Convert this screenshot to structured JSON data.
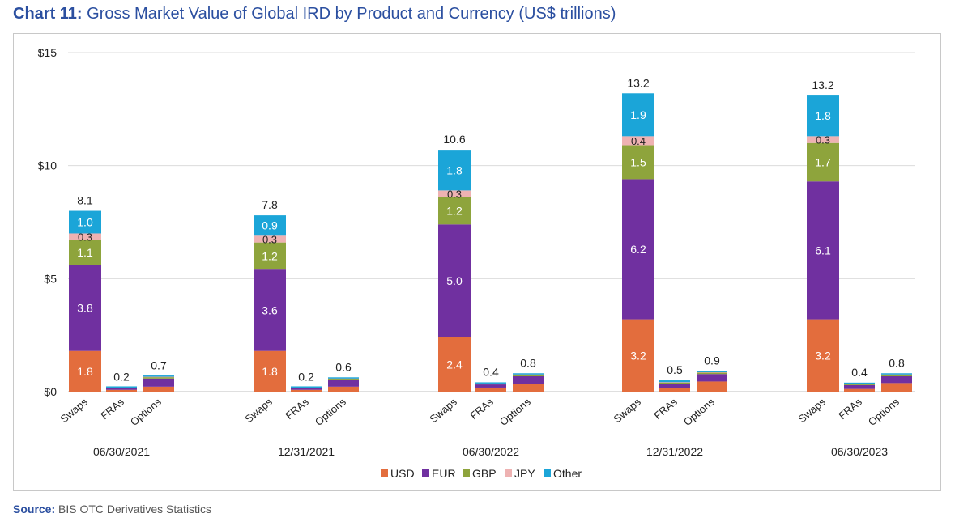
{
  "title": {
    "lead": "Chart 11:",
    "text": "Gross Market Value of Global IRD by Product and Currency (US$ trillions)"
  },
  "source": {
    "lead": "Source:",
    "text": "BIS OTC Derivatives Statistics"
  },
  "chart_data": {
    "type": "bar",
    "stacked": true,
    "title": "Gross Market Value of Global IRD by Product and Currency (US$ trillions)",
    "ylim": [
      0,
      15
    ],
    "yticks": [
      {
        "value": 0,
        "label": "$0"
      },
      {
        "value": 5,
        "label": "$5"
      },
      {
        "value": 10,
        "label": "$10"
      },
      {
        "value": 15,
        "label": "$15"
      }
    ],
    "grid": true,
    "legend_position": "bottom",
    "colors": {
      "USD": "#e36d3d",
      "EUR": "#7030a0",
      "GBP": "#8ea43c",
      "JPY": "#eeb2b2",
      "Other": "#1ba5d8"
    },
    "text_color": "#222222",
    "series_names": [
      "USD",
      "EUR",
      "GBP",
      "JPY",
      "Other"
    ],
    "groups": [
      {
        "date": "06/30/2021",
        "bars": [
          {
            "product": "Swaps",
            "total": "8.1",
            "segments": [
              {
                "series": "USD",
                "value": 1.8,
                "label": "1.8"
              },
              {
                "series": "EUR",
                "value": 3.8,
                "label": "3.8"
              },
              {
                "series": "GBP",
                "value": 1.1,
                "label": "1.1"
              },
              {
                "series": "JPY",
                "value": 0.3,
                "label": "0.3"
              },
              {
                "series": "Other",
                "value": 1.0,
                "label": "1.0"
              }
            ]
          },
          {
            "product": "FRAs",
            "total": "0.2",
            "segments": [
              {
                "series": "USD",
                "value": 0.08
              },
              {
                "series": "EUR",
                "value": 0.07
              },
              {
                "series": "GBP",
                "value": 0.02
              },
              {
                "series": "JPY",
                "value": 0.01
              },
              {
                "series": "Other",
                "value": 0.02
              }
            ]
          },
          {
            "product": "Options",
            "total": "0.7",
            "segments": [
              {
                "series": "USD",
                "value": 0.22
              },
              {
                "series": "EUR",
                "value": 0.36
              },
              {
                "series": "GBP",
                "value": 0.06
              },
              {
                "series": "JPY",
                "value": 0.02
              },
              {
                "series": "Other",
                "value": 0.04
              }
            ]
          }
        ]
      },
      {
        "date": "12/31/2021",
        "bars": [
          {
            "product": "Swaps",
            "total": "7.8",
            "segments": [
              {
                "series": "USD",
                "value": 1.8,
                "label": "1.8"
              },
              {
                "series": "EUR",
                "value": 3.6,
                "label": "3.6"
              },
              {
                "series": "GBP",
                "value": 1.2,
                "label": "1.2"
              },
              {
                "series": "JPY",
                "value": 0.3,
                "label": "0.3"
              },
              {
                "series": "Other",
                "value": 0.9,
                "label": "0.9"
              }
            ]
          },
          {
            "product": "FRAs",
            "total": "0.2",
            "segments": [
              {
                "series": "USD",
                "value": 0.08
              },
              {
                "series": "EUR",
                "value": 0.07
              },
              {
                "series": "GBP",
                "value": 0.02
              },
              {
                "series": "JPY",
                "value": 0.01
              },
              {
                "series": "Other",
                "value": 0.02
              }
            ]
          },
          {
            "product": "Options",
            "total": "0.6",
            "segments": [
              {
                "series": "USD",
                "value": 0.22
              },
              {
                "series": "EUR",
                "value": 0.3
              },
              {
                "series": "GBP",
                "value": 0.05
              },
              {
                "series": "JPY",
                "value": 0.01
              },
              {
                "series": "Other",
                "value": 0.04
              }
            ]
          }
        ]
      },
      {
        "date": "06/30/2022",
        "bars": [
          {
            "product": "Swaps",
            "total": "10.6",
            "segments": [
              {
                "series": "USD",
                "value": 2.4,
                "label": "2.4"
              },
              {
                "series": "EUR",
                "value": 5.0,
                "label": "5.0"
              },
              {
                "series": "GBP",
                "value": 1.2,
                "label": "1.2"
              },
              {
                "series": "JPY",
                "value": 0.3,
                "label": "0.3"
              },
              {
                "series": "Other",
                "value": 1.8,
                "label": "1.8"
              }
            ]
          },
          {
            "product": "FRAs",
            "total": "0.4",
            "segments": [
              {
                "series": "USD",
                "value": 0.18
              },
              {
                "series": "EUR",
                "value": 0.14
              },
              {
                "series": "GBP",
                "value": 0.03
              },
              {
                "series": "JPY",
                "value": 0.01
              },
              {
                "series": "Other",
                "value": 0.05
              }
            ]
          },
          {
            "product": "Options",
            "total": "0.8",
            "segments": [
              {
                "series": "USD",
                "value": 0.35
              },
              {
                "series": "EUR",
                "value": 0.33
              },
              {
                "series": "GBP",
                "value": 0.06
              },
              {
                "series": "JPY",
                "value": 0.02
              },
              {
                "series": "Other",
                "value": 0.05
              }
            ]
          }
        ]
      },
      {
        "date": "12/31/2022",
        "bars": [
          {
            "product": "Swaps",
            "total": "13.2",
            "segments": [
              {
                "series": "USD",
                "value": 3.2,
                "label": "3.2"
              },
              {
                "series": "EUR",
                "value": 6.2,
                "label": "6.2"
              },
              {
                "series": "GBP",
                "value": 1.5,
                "label": "1.5"
              },
              {
                "series": "JPY",
                "value": 0.4,
                "label": "0.4"
              },
              {
                "series": "Other",
                "value": 1.9,
                "label": "1.9"
              }
            ]
          },
          {
            "product": "FRAs",
            "total": "0.5",
            "segments": [
              {
                "series": "USD",
                "value": 0.15
              },
              {
                "series": "EUR",
                "value": 0.2
              },
              {
                "series": "GBP",
                "value": 0.05
              },
              {
                "series": "JPY",
                "value": 0.02
              },
              {
                "series": "Other",
                "value": 0.08
              }
            ]
          },
          {
            "product": "Options",
            "total": "0.9",
            "segments": [
              {
                "series": "USD",
                "value": 0.45
              },
              {
                "series": "EUR",
                "value": 0.33
              },
              {
                "series": "GBP",
                "value": 0.06
              },
              {
                "series": "JPY",
                "value": 0.02
              },
              {
                "series": "Other",
                "value": 0.05
              }
            ]
          }
        ]
      },
      {
        "date": "06/30/2023",
        "bars": [
          {
            "product": "Swaps",
            "total": "13.2",
            "segments": [
              {
                "series": "USD",
                "value": 3.2,
                "label": "3.2"
              },
              {
                "series": "EUR",
                "value": 6.1,
                "label": "6.1"
              },
              {
                "series": "GBP",
                "value": 1.7,
                "label": "1.7"
              },
              {
                "series": "JPY",
                "value": 0.3,
                "label": "0.3"
              },
              {
                "series": "Other",
                "value": 1.8,
                "label": "1.8"
              }
            ]
          },
          {
            "product": "FRAs",
            "total": "0.4",
            "segments": [
              {
                "series": "USD",
                "value": 0.12
              },
              {
                "series": "EUR",
                "value": 0.17
              },
              {
                "series": "GBP",
                "value": 0.04
              },
              {
                "series": "JPY",
                "value": 0.01
              },
              {
                "series": "Other",
                "value": 0.06
              }
            ]
          },
          {
            "product": "Options",
            "total": "0.8",
            "segments": [
              {
                "series": "USD",
                "value": 0.38
              },
              {
                "series": "EUR",
                "value": 0.3
              },
              {
                "series": "GBP",
                "value": 0.06
              },
              {
                "series": "JPY",
                "value": 0.02
              },
              {
                "series": "Other",
                "value": 0.04
              }
            ]
          }
        ]
      }
    ]
  }
}
